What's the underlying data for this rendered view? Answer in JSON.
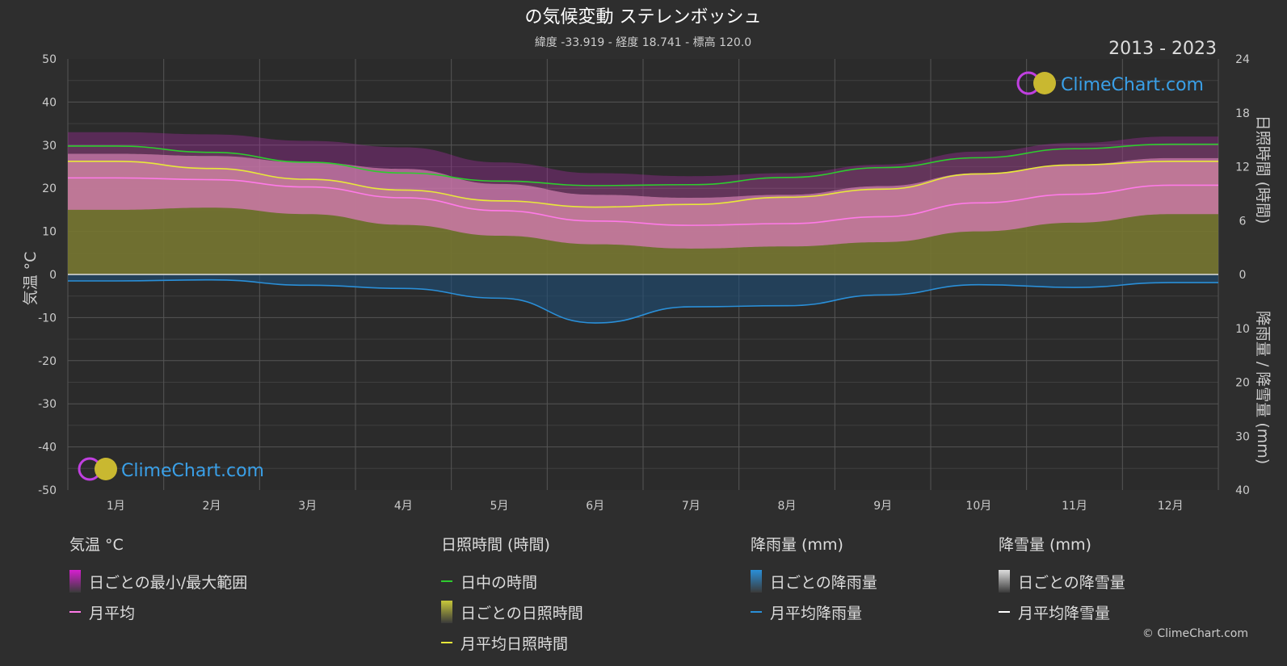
{
  "header": {
    "title": "の気候変動 ステレンボッシュ",
    "subtitle": "緯度 -33.919 - 経度 18.741 - 標高 120.0",
    "year_range": "2013 - 2023"
  },
  "watermark": "ClimeChart.com",
  "copyright": "© ClimeChart.com",
  "chart_data": {
    "type": "area",
    "months": [
      "1月",
      "2月",
      "3月",
      "4月",
      "5月",
      "6月",
      "7月",
      "8月",
      "9月",
      "10月",
      "11月",
      "12月"
    ],
    "temperature_axis": {
      "label": "気温 °C",
      "range": [
        -50,
        50
      ],
      "ticks": [
        50,
        40,
        30,
        20,
        10,
        0,
        -10,
        -20,
        -30,
        -40,
        -50
      ]
    },
    "sunshine_axis": {
      "label": "日照時間 (時間)",
      "range": [
        0,
        24
      ],
      "ticks": [
        24,
        18,
        12,
        6,
        0
      ]
    },
    "precip_axis": {
      "label": "降雨量 / 降雪量 (mm)",
      "range": [
        0,
        40
      ],
      "ticks": [
        0,
        10,
        20,
        30,
        40
      ]
    },
    "series": [
      {
        "name": "日中の時間",
        "color": "#2ecc2e",
        "unit": "hours",
        "values": [
          14.3,
          13.6,
          12.5,
          11.3,
          10.4,
          9.9,
          10.0,
          10.8,
          11.9,
          13.0,
          14.0,
          14.5
        ]
      },
      {
        "name": "月平均日照時間",
        "color": "#e8e83a",
        "unit": "hours",
        "values": [
          12.6,
          11.8,
          10.6,
          9.4,
          8.2,
          7.5,
          7.8,
          8.6,
          9.5,
          11.2,
          12.2,
          12.6
        ]
      },
      {
        "name": "月平均",
        "color": "#ff7ae8",
        "unit": "celsius",
        "values": [
          22.4,
          22.0,
          20.3,
          17.8,
          14.8,
          12.4,
          11.4,
          11.8,
          13.4,
          16.6,
          18.6,
          20.7
        ]
      },
      {
        "name": "月平均降雨量",
        "color": "#2a8fd8",
        "unit": "mm",
        "values": [
          1.2,
          1.0,
          2.0,
          2.6,
          4.4,
          9.0,
          6.0,
          5.8,
          3.8,
          1.9,
          2.4,
          1.5
        ]
      },
      {
        "name": "月平均降雪量",
        "color": "#ffffff",
        "unit": "mm",
        "values": [
          0,
          0,
          0,
          0,
          0,
          0,
          0,
          0,
          0,
          0,
          0,
          0
        ]
      }
    ],
    "temp_band": {
      "max": [
        28.0,
        27.5,
        26.0,
        24.5,
        21.0,
        18.5,
        17.8,
        18.5,
        20.5,
        23.5,
        25.5,
        27.0
      ],
      "min": [
        15.0,
        15.5,
        14.0,
        11.5,
        9.0,
        7.0,
        6.0,
        6.5,
        7.5,
        10.0,
        12.0,
        14.0
      ]
    }
  },
  "legend": {
    "groups": [
      {
        "heading": "気温 °C",
        "items": [
          {
            "label": "日ごとの最小/最大範囲",
            "kind": "box",
            "color": "#d61fd0"
          },
          {
            "label": "月平均",
            "kind": "line",
            "color": "#ff7ae8"
          }
        ]
      },
      {
        "heading": "日照時間 (時間)",
        "items": [
          {
            "label": "日中の時間",
            "kind": "line",
            "color": "#2ecc2e"
          },
          {
            "label": "日ごとの日照時間",
            "kind": "box",
            "color": "#c8c83a"
          },
          {
            "label": "月平均日照時間",
            "kind": "line",
            "color": "#e8e83a"
          }
        ]
      },
      {
        "heading": "降雨量 (mm)",
        "items": [
          {
            "label": "日ごとの降雨量",
            "kind": "box",
            "color": "#2a8fd8"
          },
          {
            "label": "月平均降雨量",
            "kind": "line",
            "color": "#2a8fd8"
          }
        ]
      },
      {
        "heading": "降雪量 (mm)",
        "items": [
          {
            "label": "日ごとの降雪量",
            "kind": "box",
            "color": "#dddddd"
          },
          {
            "label": "月平均降雪量",
            "kind": "line",
            "color": "#ffffff"
          }
        ]
      }
    ]
  }
}
